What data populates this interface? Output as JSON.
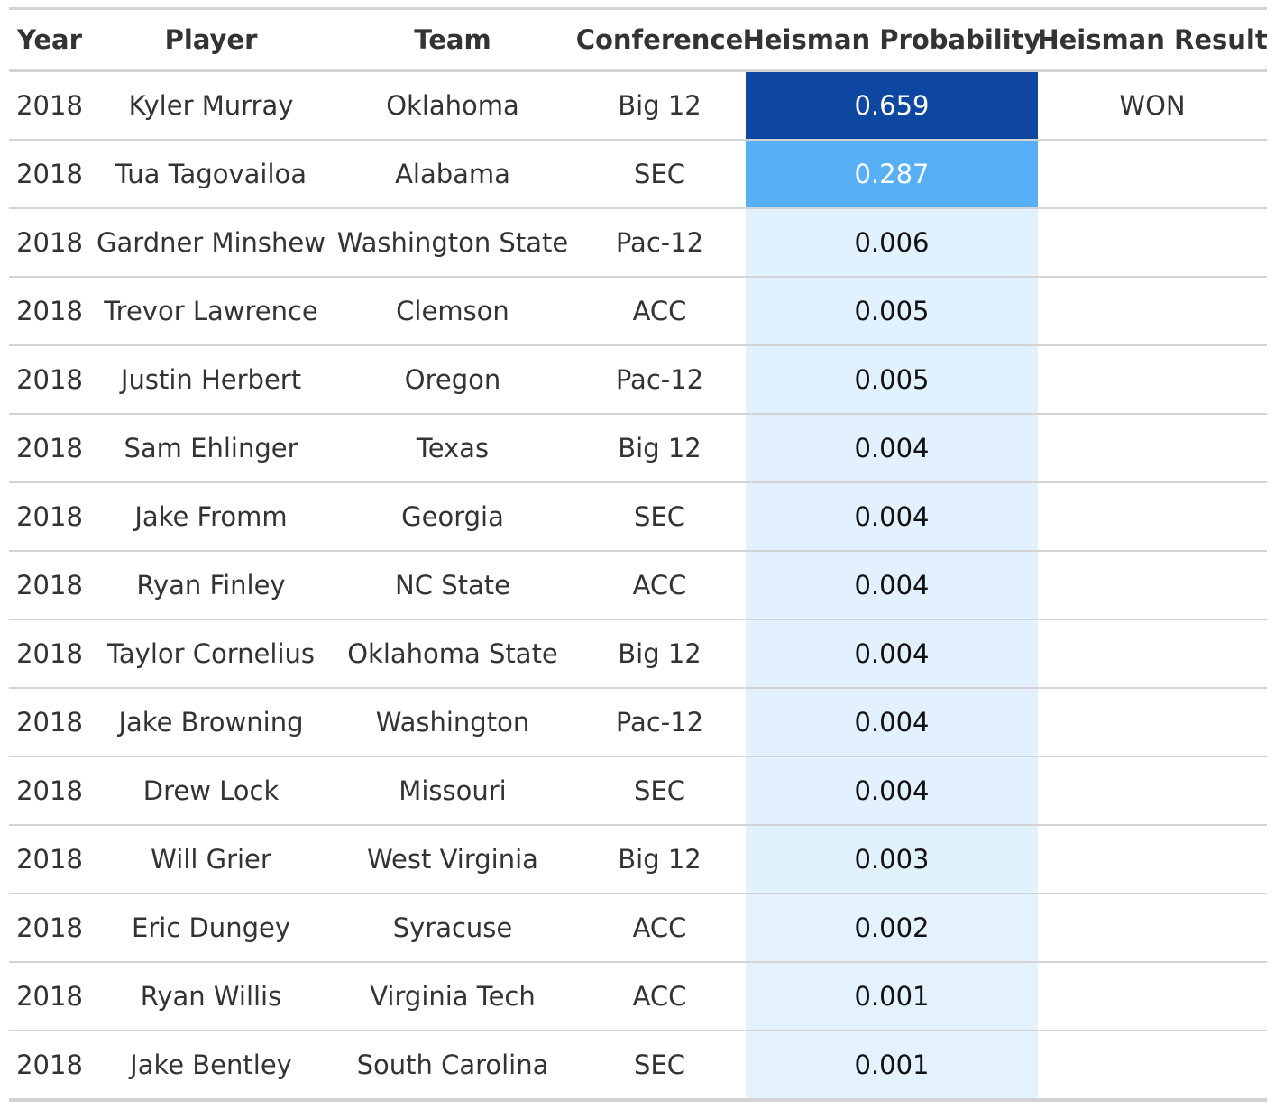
{
  "colors": {
    "scale": [
      "#e3f2fd",
      "#42a5f5",
      "#0d47a1"
    ],
    "rule": "#d3d3d3",
    "text": "#333333"
  },
  "chart_data": {
    "type": "table",
    "columns": [
      "Year",
      "Player",
      "Team",
      "Conference",
      "Heisman Probability",
      "Heisman Result"
    ],
    "rows": [
      {
        "year": "2018",
        "player": "Kyler Murray",
        "team": "Oklahoma",
        "conference": "Big 12",
        "probability": "0.659",
        "result": "WON"
      },
      {
        "year": "2018",
        "player": "Tua Tagovailoa",
        "team": "Alabama",
        "conference": "SEC",
        "probability": "0.287",
        "result": ""
      },
      {
        "year": "2018",
        "player": "Gardner Minshew",
        "team": "Washington State",
        "conference": "Pac-12",
        "probability": "0.006",
        "result": ""
      },
      {
        "year": "2018",
        "player": "Trevor Lawrence",
        "team": "Clemson",
        "conference": "ACC",
        "probability": "0.005",
        "result": ""
      },
      {
        "year": "2018",
        "player": "Justin Herbert",
        "team": "Oregon",
        "conference": "Pac-12",
        "probability": "0.005",
        "result": ""
      },
      {
        "year": "2018",
        "player": "Sam Ehlinger",
        "team": "Texas",
        "conference": "Big 12",
        "probability": "0.004",
        "result": ""
      },
      {
        "year": "2018",
        "player": "Jake Fromm",
        "team": "Georgia",
        "conference": "SEC",
        "probability": "0.004",
        "result": ""
      },
      {
        "year": "2018",
        "player": "Ryan Finley",
        "team": "NC State",
        "conference": "ACC",
        "probability": "0.004",
        "result": ""
      },
      {
        "year": "2018",
        "player": "Taylor Cornelius",
        "team": "Oklahoma State",
        "conference": "Big 12",
        "probability": "0.004",
        "result": ""
      },
      {
        "year": "2018",
        "player": "Jake Browning",
        "team": "Washington",
        "conference": "Pac-12",
        "probability": "0.004",
        "result": ""
      },
      {
        "year": "2018",
        "player": "Drew Lock",
        "team": "Missouri",
        "conference": "SEC",
        "probability": "0.004",
        "result": ""
      },
      {
        "year": "2018",
        "player": "Will Grier",
        "team": "West Virginia",
        "conference": "Big 12",
        "probability": "0.003",
        "result": ""
      },
      {
        "year": "2018",
        "player": "Eric Dungey",
        "team": "Syracuse",
        "conference": "ACC",
        "probability": "0.002",
        "result": ""
      },
      {
        "year": "2018",
        "player": "Ryan Willis",
        "team": "Virginia Tech",
        "conference": "ACC",
        "probability": "0.001",
        "result": ""
      },
      {
        "year": "2018",
        "player": "Jake Bentley",
        "team": "South Carolina",
        "conference": "SEC",
        "probability": "0.001",
        "result": ""
      }
    ]
  }
}
